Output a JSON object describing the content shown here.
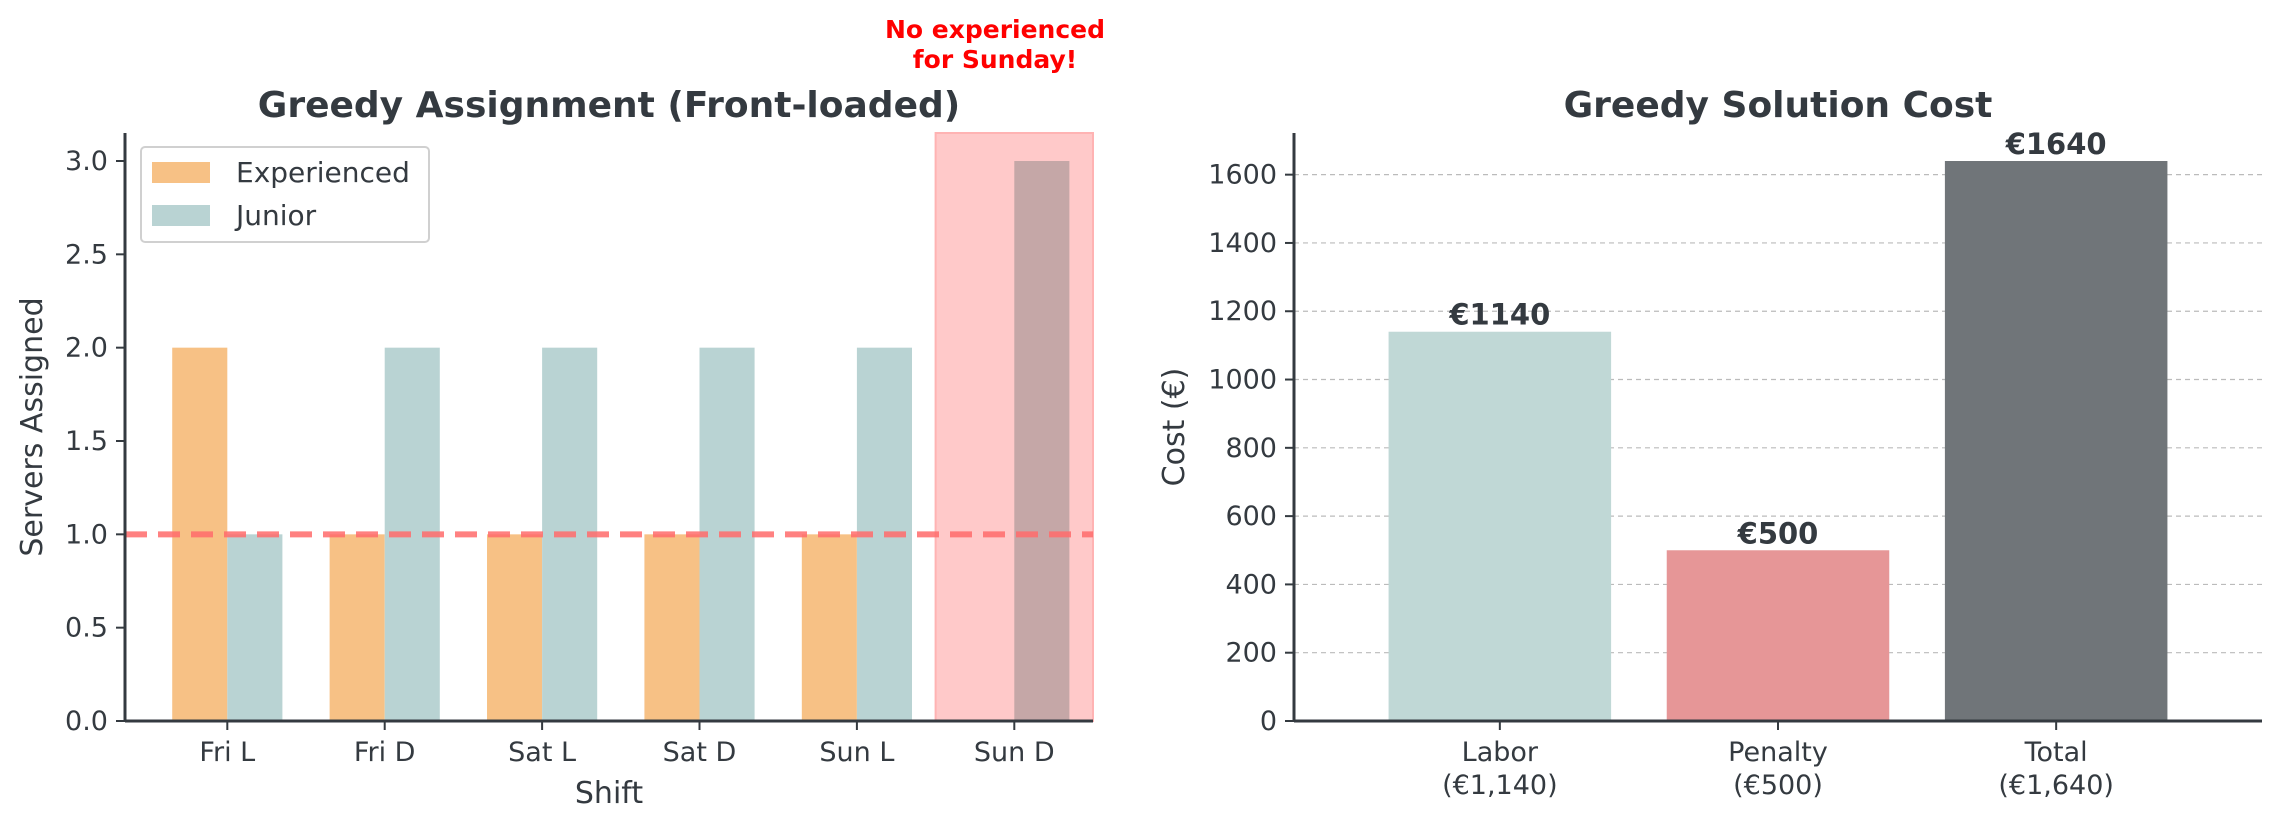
{
  "chart_data": [
    {
      "type": "bar",
      "title": "Greedy Assignment (Front-loaded)",
      "xlabel": "Shift",
      "ylabel": "Servers Assigned",
      "categories": [
        "Fri L",
        "Fri D",
        "Sat L",
        "Sat D",
        "Sun L",
        "Sun D"
      ],
      "series": [
        {
          "name": "Experienced",
          "values": [
            2,
            1,
            1,
            1,
            1,
            0
          ],
          "color": "#f7c185"
        },
        {
          "name": "Junior",
          "values": [
            1,
            2,
            2,
            2,
            2,
            3
          ],
          "color": "#b9d3d3"
        }
      ],
      "ylim": [
        0,
        3.15
      ],
      "yticks": [
        "0.0",
        "0.5",
        "1.0",
        "1.5",
        "2.0",
        "2.5",
        "3.0"
      ],
      "threshold": {
        "value": 1.0,
        "color": "#ff6b6b"
      },
      "highlight": {
        "category": "Sun D",
        "color": "#ffc9c9"
      },
      "annotation": [
        "No experienced",
        "for Sunday!"
      ],
      "legend_position": "upper-left",
      "grid": false
    },
    {
      "type": "bar",
      "title": "Greedy Solution Cost",
      "ylabel": "Cost (€)",
      "categories": [
        {
          "line1": "Labor",
          "line2": "(€1,140)"
        },
        {
          "line1": "Penalty",
          "line2": "(€500)"
        },
        {
          "line1": "Total",
          "line2": "(€1,640)"
        }
      ],
      "values": [
        1140,
        500,
        1640
      ],
      "value_labels": [
        "€1140",
        "€500",
        "€1640"
      ],
      "colors": [
        "#c0d8d6",
        "#e69697",
        "#707579"
      ],
      "ylim": [
        0,
        1722
      ],
      "yticks": [
        "0",
        "200",
        "400",
        "600",
        "800",
        "1000",
        "1200",
        "1400",
        "1600"
      ],
      "grid": true
    }
  ]
}
